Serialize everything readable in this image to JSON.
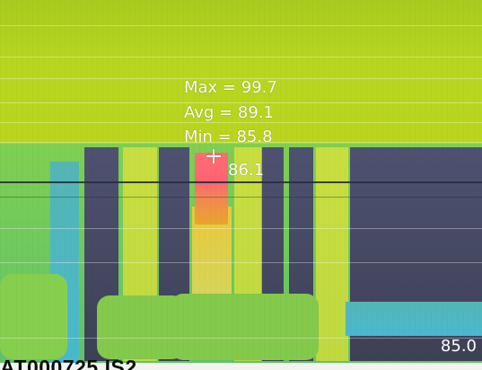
{
  "thermal": {
    "stats": {
      "max": "Max = 99.7",
      "avg": "Avg = 89.1",
      "min": "Min = 85.8"
    },
    "spot_temperature": "86.1",
    "scale_min": "85.0",
    "file_name": "AT000725.IS2"
  },
  "palette": {
    "background": "#b9d72b",
    "hot": "#ff6373",
    "cool": "#454861",
    "cyan": "#49b8cf",
    "lime": "#c9de40"
  }
}
